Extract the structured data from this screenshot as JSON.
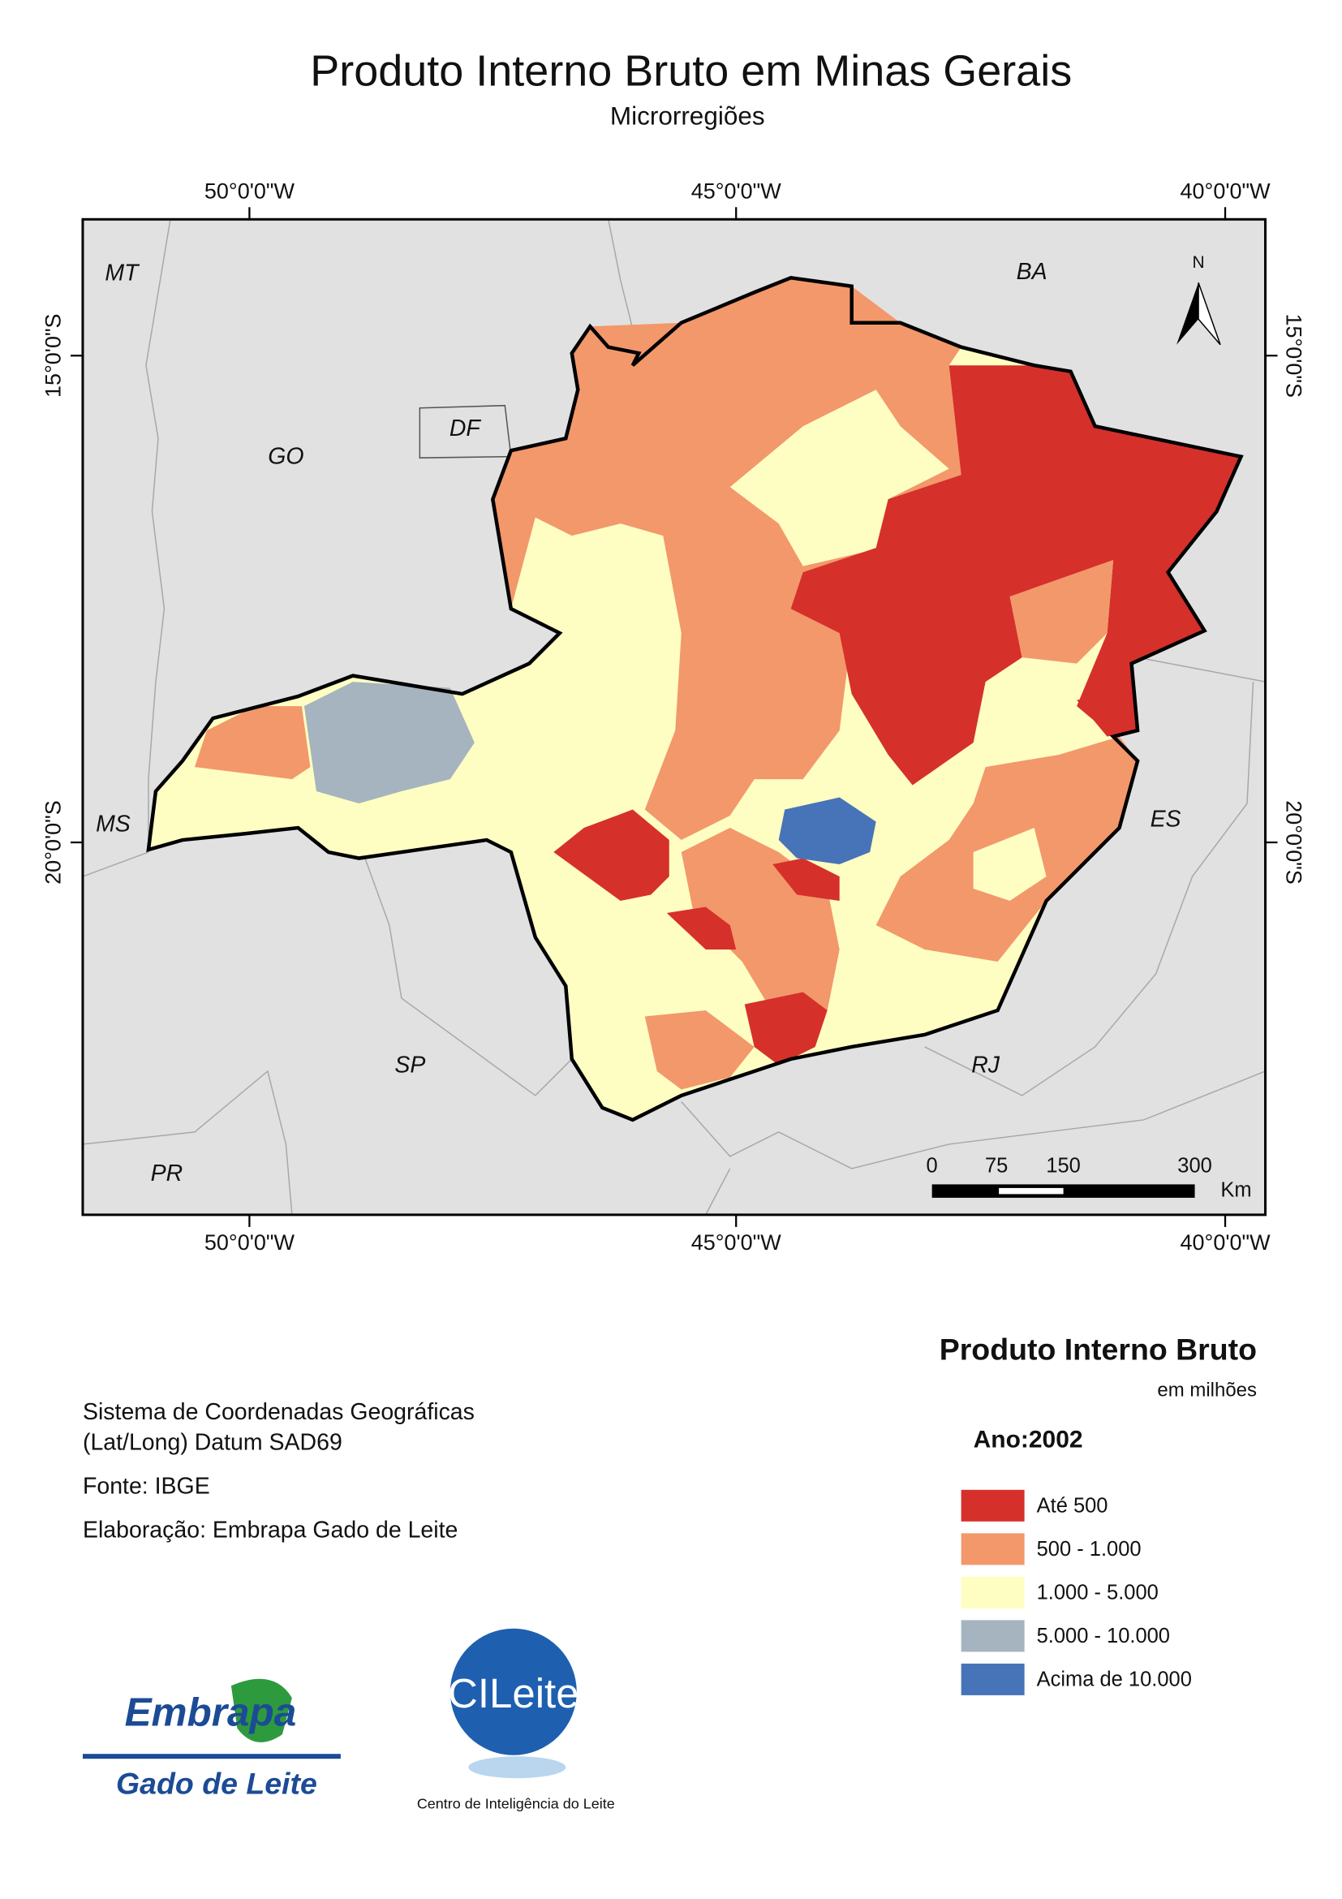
{
  "title": "Produto Interno Bruto em Minas Gerais",
  "subtitle": "Microrregiões",
  "map": {
    "top_labels": [
      "50°0'0\"W",
      "45°0'0\"W",
      "40°0'0\"W"
    ],
    "bottom_labels": [
      "50°0'0\"W",
      "45°0'0\"W",
      "40°0'0\"W"
    ],
    "left_labels": [
      "15°0'0\"S",
      "20°0'0\"S"
    ],
    "right_labels": [
      "15°0'0\"S",
      "20°0'0\"S"
    ],
    "states": [
      "MT",
      "BA",
      "GO",
      "DF",
      "MS",
      "ES",
      "SP",
      "RJ",
      "PR"
    ],
    "north": "N",
    "scale": {
      "labels": [
        "0",
        "75",
        "150",
        "300"
      ],
      "unit": "Km"
    }
  },
  "legend": {
    "title": "Produto Interno Bruto",
    "subtitle": "em milhões",
    "year": "Ano:2002",
    "items": [
      {
        "label": "Até 500",
        "color": "#d6302b"
      },
      {
        "label": "500 - 1.000",
        "color": "#f3986b"
      },
      {
        "label": "1.000 - 5.000",
        "color": "#fefec2"
      },
      {
        "label": "5.000 - 10.000",
        "color": "#a5b4bf"
      },
      {
        "label": "Acima de 10.000",
        "color": "#4774b8"
      }
    ]
  },
  "notes": [
    "Sistema de Coordenadas Geográficas",
    "(Lat/Long) Datum SAD69",
    "Fonte: IBGE",
    "Elaboração: Embrapa Gado de Leite"
  ],
  "logos": {
    "embrapa": "Embrapa",
    "embrapa_sub": "Gado de Leite",
    "cileite": "CILeite",
    "cileite_sub": "Centro de Inteligência do Leite"
  }
}
